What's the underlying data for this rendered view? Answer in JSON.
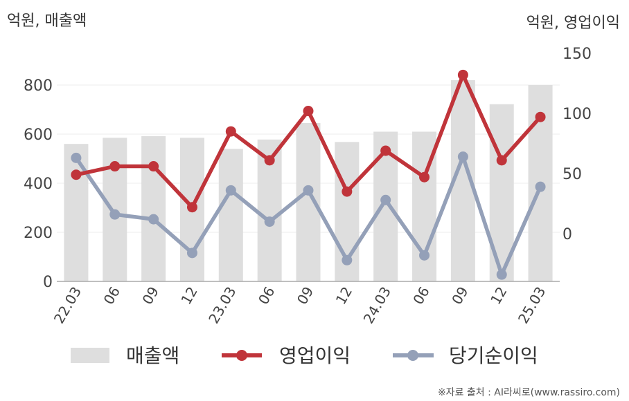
{
  "chart_data": {
    "type": "bar+line",
    "left_unit": "억원, 매출액",
    "right_unit": "억원, 영업이익",
    "categories": [
      "22.03",
      "06",
      "09",
      "12",
      "23.03",
      "06",
      "09",
      "12",
      "24.03",
      "06",
      "09",
      "12",
      "25.03"
    ],
    "left_axis": {
      "ticks": [
        "0",
        "200",
        "400",
        "600",
        "800"
      ],
      "tick_values": [
        0,
        200,
        400,
        600,
        800
      ],
      "range": [
        0,
        1000
      ]
    },
    "right_axis": {
      "ticks": [
        "0",
        "50",
        "100",
        "150"
      ],
      "tick_values": [
        0,
        50,
        100,
        150
      ],
      "range": [
        -40,
        165
      ]
    },
    "grid": true,
    "legend_position": "bottom",
    "series": [
      {
        "name": "매출액",
        "kind": "bar",
        "axis": "left",
        "color": "#dedede",
        "values": [
          560,
          585,
          592,
          585,
          540,
          578,
          645,
          568,
          610,
          610,
          820,
          722,
          800
        ]
      },
      {
        "name": "영업이익",
        "kind": "line",
        "axis": "right",
        "color": "#c0343a",
        "values": [
          49,
          56,
          56,
          22,
          85,
          61,
          102,
          35,
          69,
          47,
          132,
          61,
          97
        ]
      },
      {
        "name": "당기순이익",
        "kind": "line",
        "axis": "right",
        "color": "#94a0b8",
        "values": [
          63,
          16,
          12,
          -16,
          36,
          10,
          36,
          -22,
          28,
          -18,
          64,
          -34,
          39
        ]
      }
    ]
  },
  "source": "※자료 출처 : AI라씨로(www.rassiro.com)"
}
